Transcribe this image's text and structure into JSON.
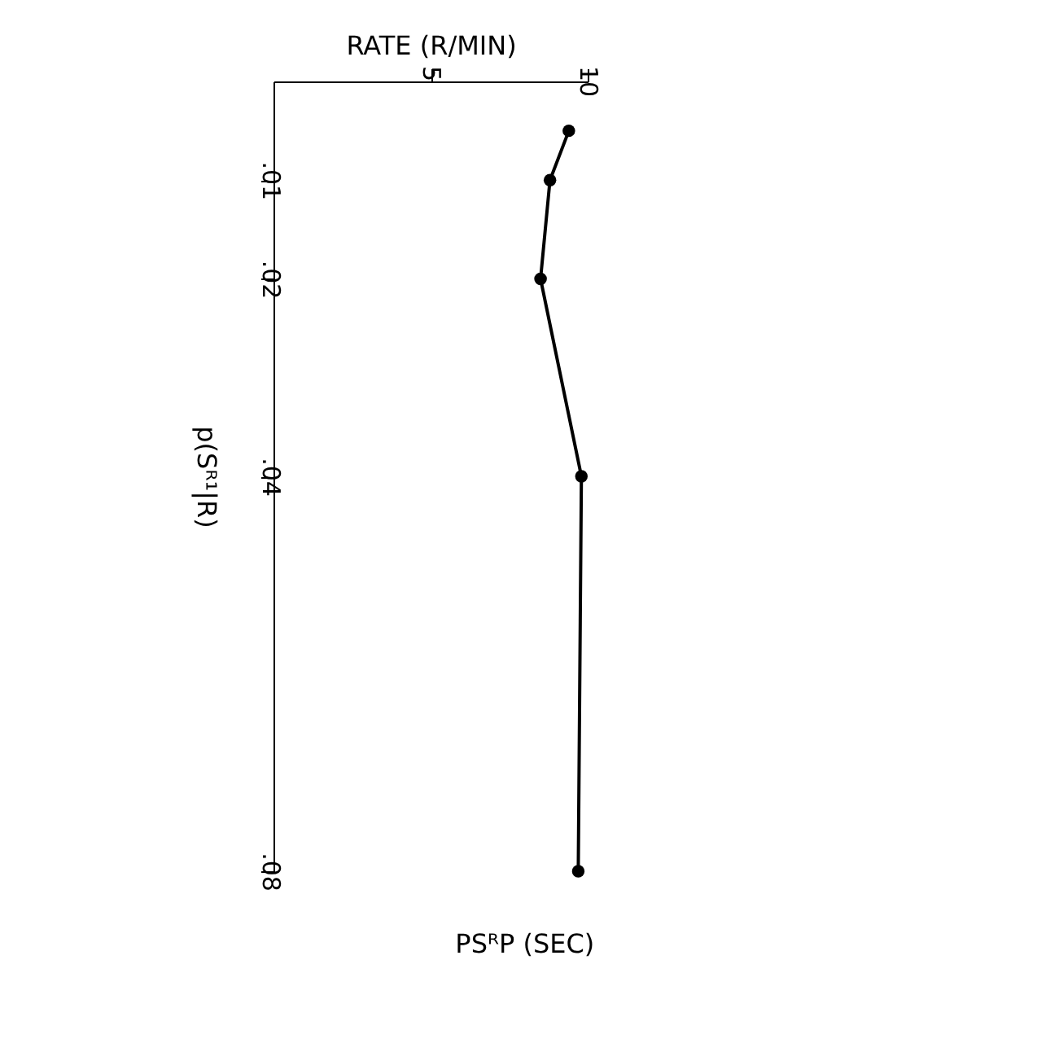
{
  "chart_data": {
    "type": "line",
    "xlabel": "RATE (R/MIN)",
    "ylabel": "p(Sᴿ¹|R)",
    "x": [
      9.4,
      8.8,
      8.5,
      9.8,
      9.7
    ],
    "values": [
      0.005,
      0.01,
      0.02,
      0.04,
      0.08
    ],
    "xlim": [
      0,
      10
    ],
    "xticks": [
      5,
      10
    ],
    "ylim": [
      0.08,
      0
    ],
    "yticks": [
      {
        "value": 0.01,
        "label": ".01"
      },
      {
        "value": 0.02,
        "label": ".02"
      },
      {
        "value": 0.04,
        "label": ".04"
      },
      {
        "value": 0.08,
        "label": ".08"
      }
    ],
    "marker": "circle",
    "line_style": "solid",
    "grid": false,
    "annotations": [
      "PSᴿP (SEC)"
    ]
  }
}
